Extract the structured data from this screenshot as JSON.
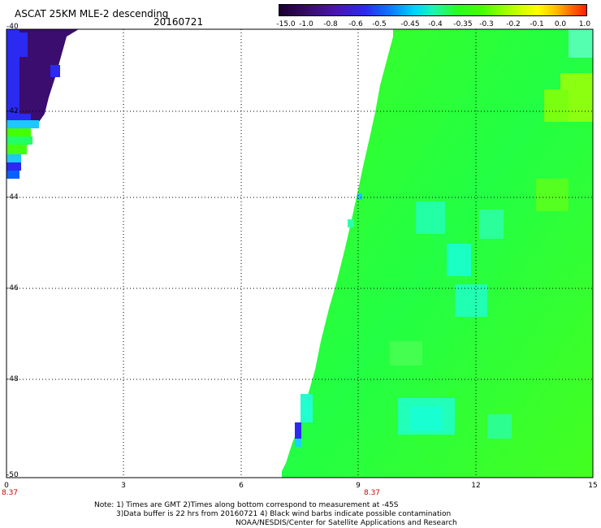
{
  "header": {
    "title": "ASCAT 25KM MLE-2 descending",
    "date": "20160721"
  },
  "colorbar": {
    "labels": [
      "-15.0",
      "-1.0",
      "-0.8",
      "-0.6",
      "-0.5",
      "-0.45",
      "-0.4",
      "-0.35",
      "-0.3",
      "-0.2",
      "-0.1",
      "0.0",
      "1.0"
    ]
  },
  "axes": {
    "y_labels": [
      "-40",
      "-42",
      "-44",
      "-46",
      "-48",
      "-50"
    ],
    "x_labels": [
      "0",
      "3",
      "6",
      "9",
      "12",
      "15"
    ],
    "red_labels": [
      "8.37",
      "8.37"
    ]
  },
  "notes": {
    "line1": "Note: 1) Times are GMT 2)Times along bottom correspond to measurement at -45S",
    "line2": "3)Data buffer is 22 hrs from 20160721 4) Black wind barbs indicate possible contamination",
    "line3": "NOAA/NESDIS/Center for Satellite Applications and Research"
  },
  "colors": {
    "dark_purple": "#3b0d6e",
    "blue": "#0a2af0",
    "cyan": "#19f5d2",
    "green": "#26ff1e",
    "light_green": "#8cff00"
  }
}
